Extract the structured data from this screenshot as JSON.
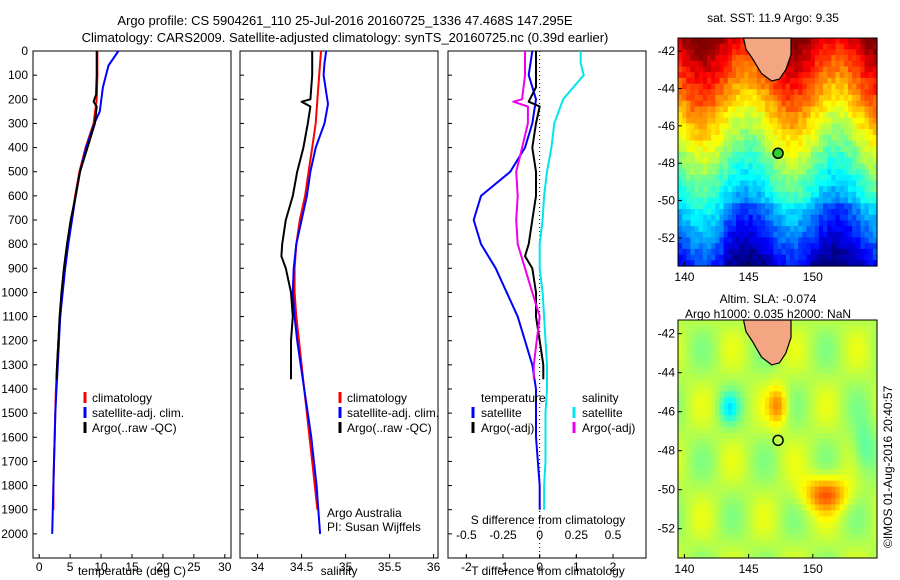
{
  "header": {
    "title_line1": "Argo profile: CS 5904261_110 25-Jul-2016 20160725_1336 47.468S 147.295E",
    "title_line2": "Climatology: CARS2009. Satellite-adjusted climatology: synTS_20160725.nc (0.39d earlier)"
  },
  "colors": {
    "climatology": "#ff0000",
    "satellite": "#0000ff",
    "argo": "#000000",
    "satellite_salinity": "#00e5ee",
    "argo_salinity_adj": "#ee00ee"
  },
  "maps": {
    "sst_title": "sat. SST: 11.9 Argo: 9.35",
    "sla_title_line1": "Altim. SLA: -0.074",
    "sla_title_line2": "Argo h1000: 0.035 h2000: NaN",
    "yticks": [
      "-42",
      "-44",
      "-46",
      "-48",
      "-50",
      "-52"
    ],
    "xticks": [
      "140",
      "145",
      "150"
    ],
    "credit": "©IMOS 01-Aug-2016 20:40:57",
    "argo_marker_lon": 147.295,
    "argo_marker_lat": -47.468
  },
  "chart_data": [
    {
      "type": "line",
      "panel": "temperature",
      "xlabel": "temperature (deg C)",
      "ylabel": "",
      "xlim": [
        -1,
        31
      ],
      "ylim": [
        2100,
        0
      ],
      "xticks": [
        "0",
        "5",
        "10",
        "15",
        "20",
        "25",
        "30"
      ],
      "yticks": [
        "0",
        "100",
        "200",
        "300",
        "400",
        "500",
        "600",
        "700",
        "800",
        "900",
        "1000",
        "1100",
        "1200",
        "1300",
        "1400",
        "1500",
        "1600",
        "1700",
        "1800",
        "1900",
        "2000"
      ],
      "legend": [
        "climatology",
        "satellite-adj. clim.",
        "Argo(..raw -QC)"
      ],
      "series": [
        {
          "name": "climatology",
          "color": "#ff0000",
          "points": [
            [
              9.4,
              0
            ],
            [
              9.4,
              100
            ],
            [
              9.3,
              200
            ],
            [
              8.8,
              300
            ],
            [
              7.5,
              400
            ],
            [
              6.5,
              500
            ],
            [
              5.8,
              600
            ],
            [
              5.2,
              700
            ],
            [
              4.6,
              800
            ],
            [
              4.1,
              900
            ],
            [
              3.7,
              1000
            ],
            [
              3.4,
              1100
            ],
            [
              3.1,
              1200
            ],
            [
              2.9,
              1300
            ],
            [
              2.7,
              1400
            ],
            [
              2.6,
              1500
            ],
            [
              2.5,
              1600
            ],
            [
              2.4,
              1700
            ],
            [
              2.3,
              1800
            ],
            [
              2.3,
              1900
            ]
          ]
        },
        {
          "name": "satellite-adj. clim.",
          "color": "#0000ff",
          "points": [
            [
              12.8,
              0
            ],
            [
              11.2,
              60
            ],
            [
              10.3,
              150
            ],
            [
              9.8,
              250
            ],
            [
              8.9,
              300
            ],
            [
              7.6,
              400
            ],
            [
              6.6,
              500
            ],
            [
              5.9,
              600
            ],
            [
              5.3,
              700
            ],
            [
              4.7,
              800
            ],
            [
              4.2,
              900
            ],
            [
              3.8,
              1000
            ],
            [
              3.4,
              1100
            ],
            [
              3.2,
              1200
            ],
            [
              3.0,
              1300
            ],
            [
              2.8,
              1400
            ],
            [
              2.6,
              1500
            ],
            [
              2.5,
              1600
            ],
            [
              2.4,
              1700
            ],
            [
              2.3,
              1800
            ],
            [
              2.2,
              1900
            ],
            [
              2.1,
              2000
            ]
          ]
        },
        {
          "name": "Argo(..raw -QC)",
          "color": "#000000",
          "points": [
            [
              9.3,
              0
            ],
            [
              9.3,
              100
            ],
            [
              9.2,
              180
            ],
            [
              8.8,
              210
            ],
            [
              9.3,
              230
            ],
            [
              9.0,
              300
            ],
            [
              7.8,
              400
            ],
            [
              6.6,
              500
            ],
            [
              5.9,
              600
            ],
            [
              5.1,
              700
            ],
            [
              4.5,
              800
            ],
            [
              4.0,
              900
            ],
            [
              3.6,
              1000
            ],
            [
              3.3,
              1100
            ],
            [
              3.1,
              1200
            ],
            [
              2.9,
              1300
            ],
            [
              2.8,
              1360
            ]
          ]
        }
      ]
    },
    {
      "type": "line",
      "panel": "salinity",
      "xlabel": "salinity",
      "ylabel": "",
      "xlim": [
        33.8,
        36.05
      ],
      "ylim": [
        2100,
        0
      ],
      "xticks": [
        "34",
        "34.5",
        "35",
        "35.5",
        "36"
      ],
      "legend": [
        "climatology",
        "satellite-adj. clim.",
        "Argo(..raw -QC)"
      ],
      "annotations": [
        "Argo Australia",
        "PI: Susan Wijffels"
      ],
      "series": [
        {
          "name": "climatology",
          "color": "#ff0000",
          "points": [
            [
              34.72,
              0
            ],
            [
              34.7,
              100
            ],
            [
              34.68,
              200
            ],
            [
              34.66,
              300
            ],
            [
              34.62,
              400
            ],
            [
              34.58,
              500
            ],
            [
              34.54,
              600
            ],
            [
              34.48,
              700
            ],
            [
              34.44,
              800
            ],
            [
              34.42,
              900
            ],
            [
              34.42,
              1000
            ],
            [
              34.44,
              1100
            ],
            [
              34.47,
              1200
            ],
            [
              34.5,
              1300
            ],
            [
              34.53,
              1400
            ],
            [
              34.56,
              1500
            ],
            [
              34.59,
              1600
            ],
            [
              34.62,
              1700
            ],
            [
              34.65,
              1800
            ],
            [
              34.68,
              1900
            ]
          ]
        },
        {
          "name": "satellite-adj. clim.",
          "color": "#0000ff",
          "points": [
            [
              34.78,
              0
            ],
            [
              34.76,
              50
            ],
            [
              34.75,
              100
            ],
            [
              34.8,
              220
            ],
            [
              34.76,
              300
            ],
            [
              34.66,
              400
            ],
            [
              34.6,
              500
            ],
            [
              34.56,
              600
            ],
            [
              34.5,
              700
            ],
            [
              34.44,
              800
            ],
            [
              34.41,
              900
            ],
            [
              34.4,
              1000
            ],
            [
              34.42,
              1100
            ],
            [
              34.45,
              1200
            ],
            [
              34.49,
              1300
            ],
            [
              34.53,
              1400
            ],
            [
              34.57,
              1500
            ],
            [
              34.61,
              1600
            ],
            [
              34.64,
              1700
            ],
            [
              34.67,
              1800
            ],
            [
              34.69,
              1900
            ],
            [
              34.71,
              2000
            ]
          ]
        },
        {
          "name": "Argo(..raw -QC)",
          "color": "#000000",
          "points": [
            [
              34.62,
              0
            ],
            [
              34.62,
              100
            ],
            [
              34.6,
              200
            ],
            [
              34.5,
              210
            ],
            [
              34.6,
              230
            ],
            [
              34.57,
              300
            ],
            [
              34.52,
              400
            ],
            [
              34.45,
              500
            ],
            [
              34.4,
              600
            ],
            [
              34.32,
              700
            ],
            [
              34.28,
              800
            ],
            [
              34.27,
              850
            ],
            [
              34.32,
              900
            ],
            [
              34.38,
              1000
            ],
            [
              34.4,
              1100
            ],
            [
              34.38,
              1200
            ],
            [
              34.38,
              1300
            ],
            [
              34.38,
              1360
            ]
          ]
        }
      ]
    },
    {
      "type": "line",
      "panel": "difference",
      "xlabel": "T difference from climatology",
      "x2label": "S difference from climatology",
      "xlim": [
        -2.5,
        2.9
      ],
      "ylim": [
        2100,
        0
      ],
      "xticks": [
        "-2",
        "-1",
        "0",
        "1",
        "2"
      ],
      "x2ticks": [
        "-0.5",
        "-0.25",
        "0",
        "0.25",
        "0.5"
      ],
      "legend": {
        "temperature": "temperature",
        "salinity": "salinity",
        "t_satellite": "satellite",
        "t_argo": "Argo(-adj)",
        "s_satellite": "satellite",
        "s_argo": "Argo(-adj)"
      },
      "series": [
        {
          "name": "T satellite",
          "color": "#0000ff",
          "points": [
            [
              -0.2,
              0
            ],
            [
              -0.3,
              100
            ],
            [
              -0.1,
              200
            ],
            [
              -0.2,
              300
            ],
            [
              -0.4,
              400
            ],
            [
              -0.8,
              500
            ],
            [
              -1.6,
              600
            ],
            [
              -1.8,
              700
            ],
            [
              -1.6,
              800
            ],
            [
              -1.2,
              900
            ],
            [
              -0.9,
              1000
            ],
            [
              -0.6,
              1100
            ],
            [
              -0.4,
              1200
            ],
            [
              -0.2,
              1300
            ],
            [
              -0.1,
              1400
            ],
            [
              -0.1,
              1600
            ],
            [
              0.0,
              1800
            ],
            [
              0.0,
              1900
            ]
          ]
        },
        {
          "name": "T Argo(-adj)",
          "color": "#000000",
          "points": [
            [
              -0.1,
              0
            ],
            [
              -0.1,
              150
            ],
            [
              -0.3,
              210
            ],
            [
              0.0,
              230
            ],
            [
              -0.1,
              300
            ],
            [
              -0.2,
              400
            ],
            [
              -0.1,
              500
            ],
            [
              -0.1,
              600
            ],
            [
              -0.2,
              700
            ],
            [
              -0.3,
              800
            ],
            [
              -0.4,
              850
            ],
            [
              -0.2,
              900
            ],
            [
              -0.1,
              1000
            ],
            [
              -0.1,
              1100
            ],
            [
              0.0,
              1200
            ],
            [
              0.1,
              1300
            ],
            [
              0.1,
              1360
            ]
          ]
        },
        {
          "name": "S satellite",
          "color": "#00e5ee",
          "points": [
            [
              0.28,
              0
            ],
            [
              0.28,
              50
            ],
            [
              0.3,
              100
            ],
            [
              0.16,
              200
            ],
            [
              0.1,
              300
            ],
            [
              0.08,
              400
            ],
            [
              0.05,
              500
            ],
            [
              0.03,
              600
            ],
            [
              0.02,
              700
            ],
            [
              0.0,
              800
            ],
            [
              0.0,
              900
            ],
            [
              0.02,
              1000
            ],
            [
              0.03,
              1100
            ],
            [
              0.04,
              1200
            ],
            [
              0.05,
              1300
            ],
            [
              0.05,
              1400
            ],
            [
              0.04,
              1500
            ],
            [
              0.04,
              1600
            ],
            [
              0.04,
              1700
            ],
            [
              0.03,
              1800
            ],
            [
              0.03,
              1900
            ]
          ]
        },
        {
          "name": "S Argo(-adj)",
          "color": "#ee00ee",
          "points": [
            [
              -0.1,
              0
            ],
            [
              -0.1,
              100
            ],
            [
              -0.12,
              200
            ],
            [
              -0.18,
              210
            ],
            [
              -0.08,
              230
            ],
            [
              -0.08,
              300
            ],
            [
              -0.12,
              400
            ],
            [
              -0.16,
              500
            ],
            [
              -0.15,
              600
            ],
            [
              -0.16,
              700
            ],
            [
              -0.15,
              800
            ],
            [
              -0.1,
              900
            ],
            [
              -0.05,
              1000
            ],
            [
              0.0,
              1100
            ],
            [
              -0.02,
              1200
            ],
            [
              -0.04,
              1300
            ],
            [
              -0.04,
              1360
            ]
          ]
        }
      ]
    }
  ]
}
